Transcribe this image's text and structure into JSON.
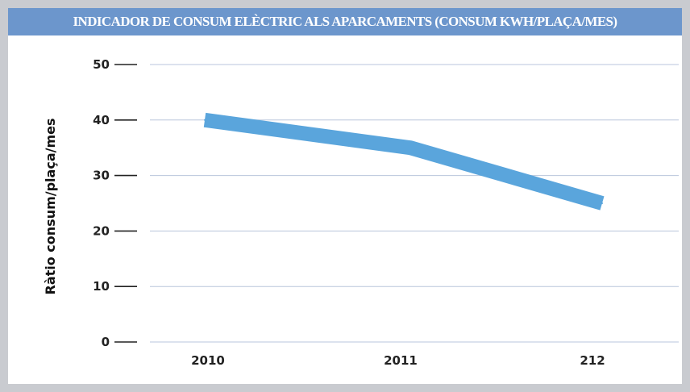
{
  "chart_data": {
    "type": "line",
    "title": "INDICADOR DE CONSUM ELÈCTRIC ALS APARCAMENTS (CONSUM KWH/PLAÇA/MES)",
    "xlabel": "",
    "ylabel": "Ràtio consum/plaça/mes",
    "categories": [
      "2010",
      "2011",
      "212"
    ],
    "series": [
      {
        "values": [
          40,
          35,
          25
        ]
      }
    ],
    "ylim": [
      0,
      50
    ],
    "yticks": [
      0,
      10,
      20,
      30,
      40,
      50
    ],
    "grid": true,
    "legend": "none",
    "colors": {
      "line": "#5aa5dc",
      "title_bar": "#6c96cc",
      "grid": "#b8c6dc",
      "frame": "#c9cbd0"
    }
  }
}
